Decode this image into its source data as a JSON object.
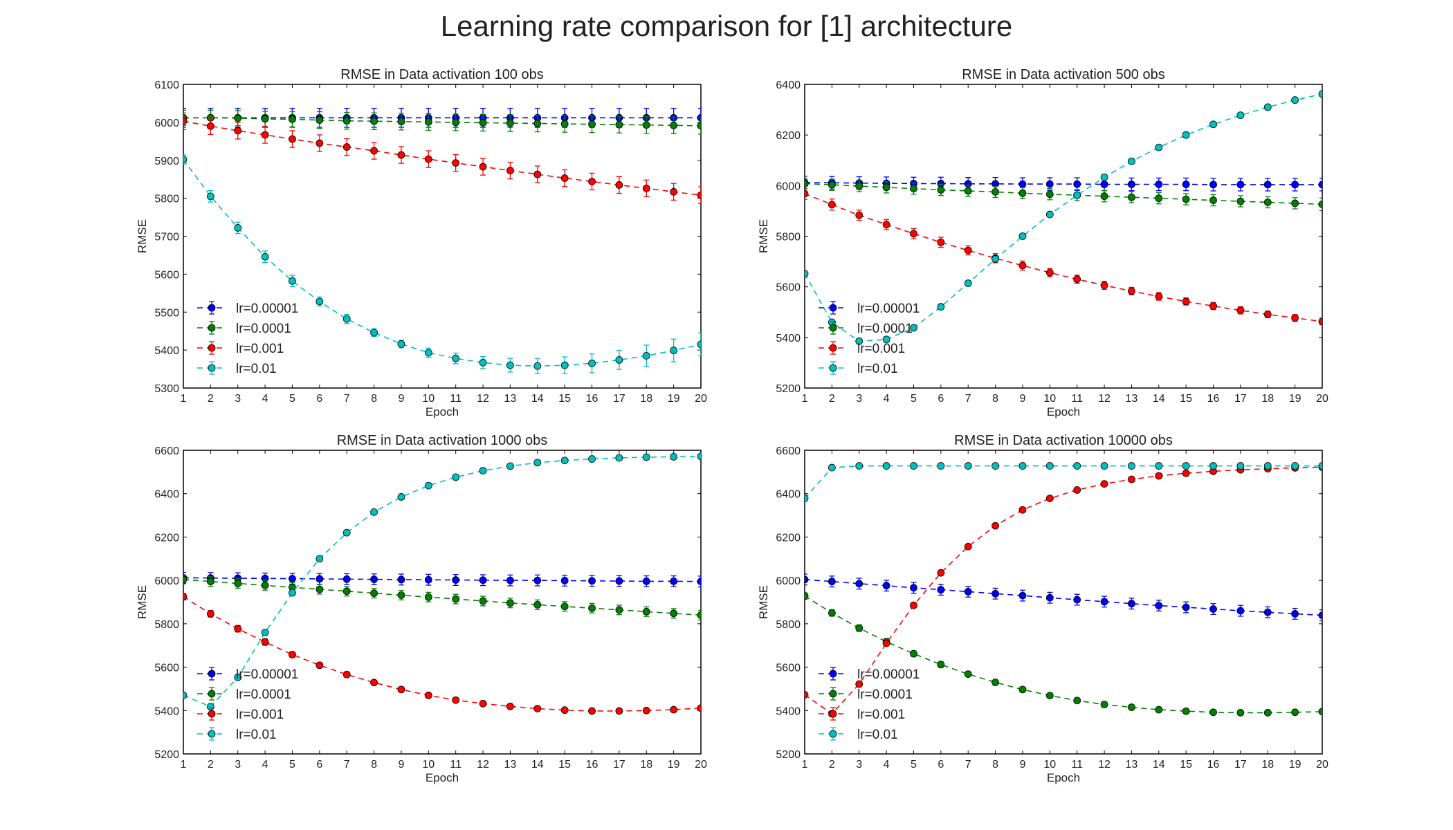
{
  "figure": {
    "suptitle": "Learning rate comparison for [1] architecture"
  },
  "chart_data": [
    {
      "type": "line",
      "title": "RMSE in Data activation 100 obs",
      "xlabel": "Epoch",
      "ylabel": "RMSE",
      "x": [
        1,
        2,
        3,
        4,
        5,
        6,
        7,
        8,
        9,
        10,
        11,
        12,
        13,
        14,
        15,
        16,
        17,
        18,
        19,
        20
      ],
      "xlim": [
        1,
        20
      ],
      "ylim": [
        5300,
        6100
      ],
      "yticks": [
        5300,
        5400,
        5500,
        5600,
        5700,
        5800,
        5900,
        6000,
        6100
      ],
      "legend_position": "lower-left",
      "series": [
        {
          "name": "lr=0.00001",
          "color": "#0000ff",
          "values": [
            6012,
            6012,
            6012,
            6012,
            6012,
            6012,
            6012,
            6012,
            6012,
            6012,
            6012,
            6012,
            6012,
            6012,
            6012,
            6012,
            6012,
            6012,
            6012,
            6012
          ],
          "errors": [
            25,
            25,
            25,
            25,
            25,
            25,
            25,
            25,
            25,
            25,
            25,
            25,
            25,
            25,
            25,
            25,
            25,
            25,
            25,
            25
          ]
        },
        {
          "name": "lr=0.0001",
          "color": "#008000",
          "values": [
            6012,
            6012,
            6011,
            6009,
            6008,
            6006,
            6004,
            6003,
            6002,
            6001,
            6000,
            5999,
            5998,
            5997,
            5996,
            5995,
            5994,
            5993,
            5992,
            5991
          ],
          "errors": [
            20,
            20,
            20,
            20,
            20,
            22,
            22,
            22,
            22,
            22,
            22,
            22,
            22,
            22,
            22,
            22,
            22,
            22,
            22,
            22
          ]
        },
        {
          "name": "lr=0.001",
          "color": "#ff0000",
          "values": [
            6003,
            5990,
            5978,
            5967,
            5956,
            5945,
            5935,
            5925,
            5914,
            5903,
            5893,
            5883,
            5873,
            5863,
            5853,
            5844,
            5835,
            5826,
            5817,
            5808
          ],
          "errors": [
            22,
            22,
            22,
            22,
            22,
            22,
            22,
            22,
            22,
            22,
            22,
            22,
            22,
            22,
            22,
            22,
            22,
            22,
            22,
            22
          ]
        },
        {
          "name": "lr=0.01",
          "color": "#00bfbf",
          "values": [
            5902,
            5805,
            5722,
            5646,
            5582,
            5528,
            5482,
            5446,
            5416,
            5393,
            5378,
            5367,
            5360,
            5358,
            5360,
            5365,
            5374,
            5385,
            5399,
            5415
          ],
          "errors": [
            12,
            15,
            15,
            15,
            15,
            12,
            12,
            10,
            10,
            12,
            14,
            16,
            18,
            20,
            22,
            25,
            25,
            28,
            30,
            30
          ]
        }
      ]
    },
    {
      "type": "line",
      "title": "RMSE in Data activation 500 obs",
      "xlabel": "Epoch",
      "ylabel": "RMSE",
      "x": [
        1,
        2,
        3,
        4,
        5,
        6,
        7,
        8,
        9,
        10,
        11,
        12,
        13,
        14,
        15,
        16,
        17,
        18,
        19,
        20
      ],
      "xlim": [
        1,
        20
      ],
      "ylim": [
        5200,
        6400
      ],
      "yticks": [
        5200,
        5400,
        5600,
        5800,
        6000,
        6200,
        6400
      ],
      "legend_position": "lower-left",
      "series": [
        {
          "name": "lr=0.00001",
          "color": "#0000ff",
          "values": [
            6012,
            6011,
            6010,
            6009,
            6008,
            6008,
            6007,
            6007,
            6006,
            6006,
            6006,
            6005,
            6005,
            6005,
            6005,
            6004,
            6004,
            6004,
            6004,
            6004
          ],
          "errors": [
            25,
            25,
            25,
            25,
            25,
            25,
            25,
            25,
            25,
            25,
            25,
            25,
            25,
            25,
            25,
            25,
            25,
            25,
            25,
            25
          ]
        },
        {
          "name": "lr=0.0001",
          "color": "#008000",
          "values": [
            6008,
            6003,
            5998,
            5993,
            5988,
            5983,
            5979,
            5975,
            5970,
            5966,
            5962,
            5958,
            5954,
            5950,
            5946,
            5942,
            5938,
            5934,
            5930,
            5926
          ],
          "errors": [
            20,
            22,
            22,
            22,
            22,
            22,
            22,
            22,
            22,
            22,
            22,
            22,
            22,
            22,
            22,
            22,
            22,
            22,
            22,
            25
          ]
        },
        {
          "name": "lr=0.001",
          "color": "#ff0000",
          "values": [
            5968,
            5925,
            5883,
            5846,
            5810,
            5776,
            5744,
            5713,
            5684,
            5656,
            5630,
            5606,
            5583,
            5562,
            5542,
            5524,
            5507,
            5491,
            5477,
            5463
          ],
          "errors": [
            22,
            22,
            20,
            20,
            20,
            20,
            18,
            18,
            18,
            16,
            16,
            16,
            15,
            15,
            14,
            14,
            14,
            13,
            13,
            13
          ]
        },
        {
          "name": "lr=0.01",
          "color": "#00bfbf",
          "values": [
            5652,
            5460,
            5385,
            5392,
            5438,
            5521,
            5614,
            5710,
            5800,
            5886,
            5962,
            6033,
            6096,
            6151,
            6200,
            6242,
            6278,
            6310,
            6338,
            6362
          ],
          "errors": [
            10,
            10,
            10,
            10,
            10,
            10,
            10,
            10,
            10,
            10,
            10,
            10,
            10,
            10,
            10,
            10,
            10,
            10,
            10,
            10
          ]
        }
      ]
    },
    {
      "type": "line",
      "title": "RMSE in Data activation 1000 obs",
      "xlabel": "Epoch",
      "ylabel": "RMSE",
      "x": [
        1,
        2,
        3,
        4,
        5,
        6,
        7,
        8,
        9,
        10,
        11,
        12,
        13,
        14,
        15,
        16,
        17,
        18,
        19,
        20
      ],
      "xlim": [
        1,
        20
      ],
      "ylim": [
        5200,
        6600
      ],
      "yticks": [
        5200,
        5400,
        5600,
        5800,
        6000,
        6200,
        6400,
        6600
      ],
      "legend_position": "lower-left",
      "series": [
        {
          "name": "lr=0.00001",
          "color": "#0000ff",
          "values": [
            6012,
            6011,
            6010,
            6009,
            6008,
            6007,
            6006,
            6005,
            6004,
            6003,
            6002,
            6001,
            6000,
            6000,
            5999,
            5998,
            5997,
            5996,
            5996,
            5995
          ],
          "errors": [
            25,
            25,
            25,
            25,
            25,
            25,
            25,
            25,
            25,
            25,
            25,
            25,
            25,
            25,
            25,
            25,
            25,
            25,
            25,
            25
          ]
        },
        {
          "name": "lr=0.0001",
          "color": "#008000",
          "values": [
            6004,
            5995,
            5986,
            5977,
            5968,
            5959,
            5950,
            5941,
            5932,
            5923,
            5914,
            5905,
            5896,
            5888,
            5880,
            5872,
            5864,
            5856,
            5848,
            5840
          ],
          "errors": [
            20,
            22,
            22,
            22,
            22,
            22,
            22,
            22,
            22,
            22,
            22,
            22,
            22,
            22,
            22,
            22,
            22,
            22,
            22,
            22
          ]
        },
        {
          "name": "lr=0.001",
          "color": "#ff0000",
          "values": [
            5925,
            5846,
            5777,
            5716,
            5658,
            5609,
            5566,
            5529,
            5497,
            5470,
            5448,
            5432,
            5419,
            5409,
            5402,
            5398,
            5398,
            5400,
            5404,
            5411
          ],
          "errors": [
            15,
            15,
            15,
            15,
            12,
            12,
            12,
            10,
            10,
            10,
            10,
            10,
            10,
            10,
            10,
            10,
            10,
            10,
            10,
            10
          ]
        },
        {
          "name": "lr=0.01",
          "color": "#00bfbf",
          "values": [
            5470,
            5418,
            5553,
            5760,
            5943,
            6100,
            6220,
            6315,
            6385,
            6437,
            6476,
            6506,
            6527,
            6543,
            6553,
            6560,
            6565,
            6568,
            6570,
            6572
          ],
          "errors": [
            10,
            10,
            10,
            10,
            10,
            10,
            10,
            10,
            10,
            10,
            10,
            10,
            10,
            10,
            10,
            10,
            10,
            10,
            10,
            10
          ]
        }
      ]
    },
    {
      "type": "line",
      "title": "RMSE in Data activation 10000 obs",
      "xlabel": "Epoch",
      "ylabel": "RMSE",
      "x": [
        1,
        2,
        3,
        4,
        5,
        6,
        7,
        8,
        9,
        10,
        11,
        12,
        13,
        14,
        15,
        16,
        17,
        18,
        19,
        20
      ],
      "xlim": [
        1,
        20
      ],
      "ylim": [
        5200,
        6600
      ],
      "yticks": [
        5200,
        5400,
        5600,
        5800,
        6000,
        6200,
        6400,
        6600
      ],
      "legend_position": "lower-left",
      "series": [
        {
          "name": "lr=0.00001",
          "color": "#0000ff",
          "values": [
            6004,
            5995,
            5985,
            5976,
            5966,
            5957,
            5948,
            5939,
            5930,
            5920,
            5911,
            5902,
            5893,
            5884,
            5876,
            5868,
            5860,
            5853,
            5846,
            5839
          ],
          "errors": [
            25,
            25,
            25,
            25,
            25,
            25,
            25,
            25,
            25,
            25,
            25,
            25,
            25,
            25,
            25,
            25,
            25,
            25,
            25,
            25
          ]
        },
        {
          "name": "lr=0.0001",
          "color": "#008000",
          "values": [
            5928,
            5850,
            5780,
            5717,
            5662,
            5612,
            5568,
            5530,
            5497,
            5469,
            5446,
            5428,
            5415,
            5404,
            5397,
            5392,
            5390,
            5390,
            5392,
            5395
          ],
          "errors": [
            15,
            15,
            15,
            15,
            12,
            12,
            10,
            10,
            10,
            10,
            10,
            10,
            10,
            10,
            10,
            10,
            10,
            10,
            10,
            10
          ]
        },
        {
          "name": "lr=0.001",
          "color": "#ff0000",
          "values": [
            5473,
            5385,
            5522,
            5710,
            5885,
            6035,
            6156,
            6252,
            6325,
            6378,
            6417,
            6445,
            6466,
            6482,
            6494,
            6503,
            6510,
            6515,
            6519,
            6522
          ],
          "errors": [
            10,
            10,
            10,
            10,
            10,
            10,
            10,
            10,
            10,
            10,
            10,
            10,
            10,
            10,
            10,
            10,
            10,
            10,
            10,
            10
          ]
        },
        {
          "name": "lr=0.01",
          "color": "#00bfbf",
          "values": [
            6378,
            6520,
            6528,
            6528,
            6528,
            6528,
            6528,
            6528,
            6528,
            6528,
            6528,
            6528,
            6528,
            6528,
            6528,
            6528,
            6528,
            6528,
            6528,
            6528
          ],
          "errors": [
            10,
            10,
            10,
            10,
            10,
            10,
            10,
            10,
            10,
            10,
            10,
            10,
            10,
            10,
            10,
            10,
            10,
            10,
            10,
            10
          ]
        }
      ]
    }
  ]
}
